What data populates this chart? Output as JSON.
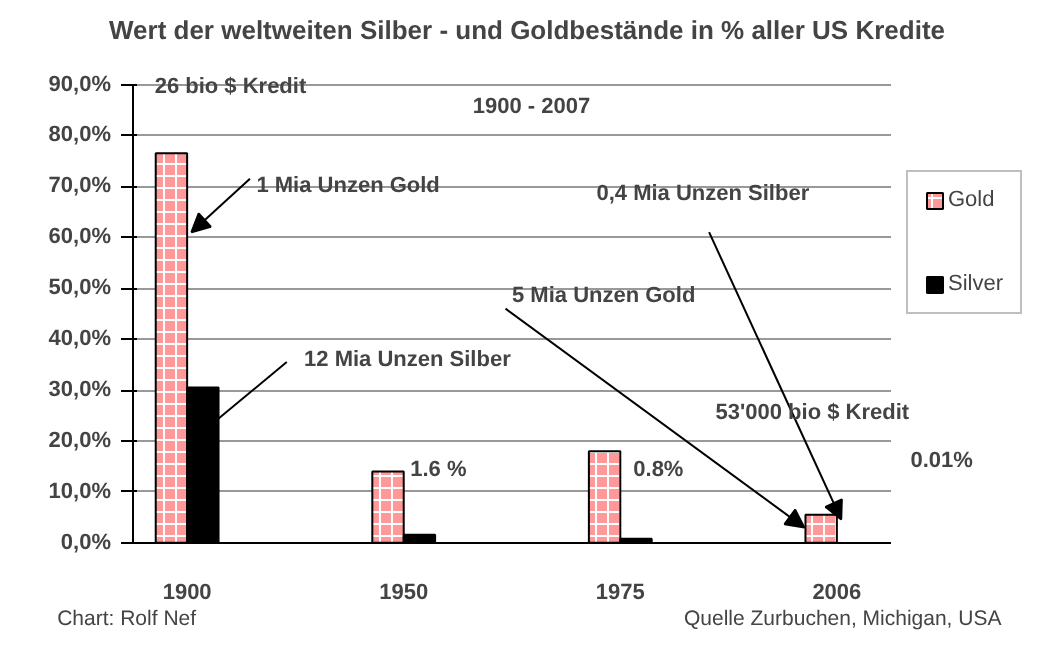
{
  "chart_data": {
    "type": "bar",
    "title": "Wert der weltweiten Silber - und Goldbestände in % aller US Kredite",
    "categories": [
      "1900",
      "1950",
      "1975",
      "2006"
    ],
    "series": [
      {
        "name": "Gold",
        "color": "#ff9999",
        "values": [
          76.5,
          14,
          18,
          5.5
        ]
      },
      {
        "name": "Silver",
        "color": "#000000",
        "values": [
          30.5,
          1.6,
          0.8,
          null
        ]
      }
    ],
    "ylim": [
      0,
      90
    ],
    "yticks": [
      {
        "value": 0,
        "label": "0,0%"
      },
      {
        "value": 10,
        "label": "10,0%"
      },
      {
        "value": 20,
        "label": "20,0%"
      },
      {
        "value": 30,
        "label": "30,0%"
      },
      {
        "value": 40,
        "label": "40,0%"
      },
      {
        "value": 50,
        "label": "50,0%"
      },
      {
        "value": 60,
        "label": "60,0%"
      },
      {
        "value": 70,
        "label": "70,0%"
      },
      {
        "value": 80,
        "label": "80,0%"
      },
      {
        "value": 90,
        "label": "90,0%"
      }
    ],
    "grid": "y",
    "legend": "right",
    "annotations": [
      "26 bio $ Kredit",
      "1900 - 2007",
      {
        "text": "1 Mia Unzen Gold",
        "x": "1900",
        "y": 61
      },
      {
        "text": "12 Mia Unzen Silber",
        "x": "1900",
        "y": 20
      },
      "5 Mia Unzen Gold",
      {
        "text": "0,4 Mia Unzen Silber",
        "x": "2006",
        "y": 4.6
      },
      "53'000 bio $ Kredit",
      "0.01%",
      "1.6 %",
      "0.8%",
      "Chart: Rolf Nef",
      "Quelle Zurbuchen, Michigan, USA"
    ]
  }
}
